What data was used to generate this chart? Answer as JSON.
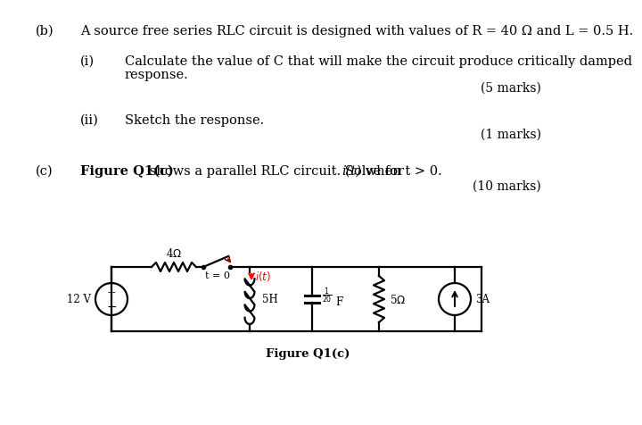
{
  "background_color": "#ffffff",
  "text_color": "#000000",
  "part_b_label": "(b)",
  "part_b_text": "A source free series RLC circuit is designed with values of R = 40 Ω and L = 0.5 H.",
  "part_bi_label": "(i)",
  "part_bi_text1": "Calculate the value of C that will make the circuit produce critically damped",
  "part_bi_text2": "response.",
  "part_bi_marks": "(5 marks)",
  "part_bii_label": "(ii)",
  "part_bii_text": "Sketch the response.",
  "part_bii_marks": "(1 marks)",
  "part_c_label": "(c)",
  "part_c_text_bold": "Figure Q1(c)",
  "part_c_text_normal": " shows a parallel RLC circuit. Solve for ",
  "part_c_text_italic": "i(t)",
  "part_c_text_end": " when t > 0.",
  "part_c_marks": "(10 marks)",
  "fig_caption": "Figure Q1(c)",
  "font_size_main": 10.5,
  "font_size_small": 10
}
